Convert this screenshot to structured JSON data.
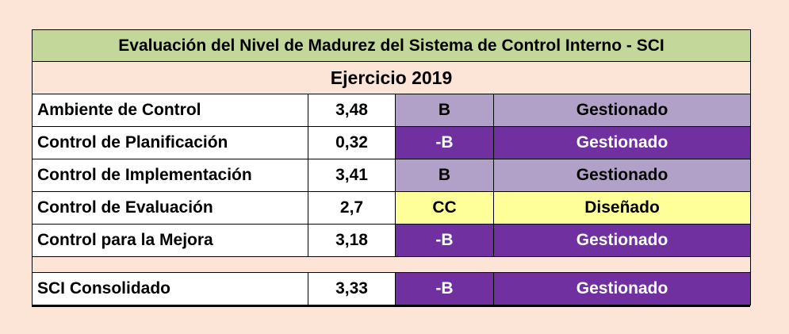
{
  "title": "Evaluación del Nivel de Madurez del Sistema de Control Interno - SCI",
  "subtitle": "Ejercicio 2019",
  "colors": {
    "background": "#fce4d6",
    "title_band": "#c4d79b",
    "light_purple": "#b1a0c7",
    "dark_purple": "#7030a0",
    "yellow": "#ffff99"
  },
  "rows": [
    {
      "name": "Ambiente de Control",
      "value": "3,48",
      "grade": "B",
      "level": "Gestionado",
      "style": "light"
    },
    {
      "name": "Control de Planificación",
      "value": "0,32",
      "grade": "-B",
      "level": "Gestionado",
      "style": "dark"
    },
    {
      "name": "Control de Implementación",
      "value": "3,41",
      "grade": "B",
      "level": "Gestionado",
      "style": "light"
    },
    {
      "name": "Control de Evaluación",
      "value": "2,7",
      "grade": "CC",
      "level": "Diseñado",
      "style": "yellow"
    },
    {
      "name": "Control para la Mejora",
      "value": "3,18",
      "grade": "-B",
      "level": "Gestionado",
      "style": "dark"
    }
  ],
  "total": {
    "name": "SCI Consolidado",
    "value": "3,33",
    "grade": "-B",
    "level": "Gestionado",
    "style": "dark"
  }
}
